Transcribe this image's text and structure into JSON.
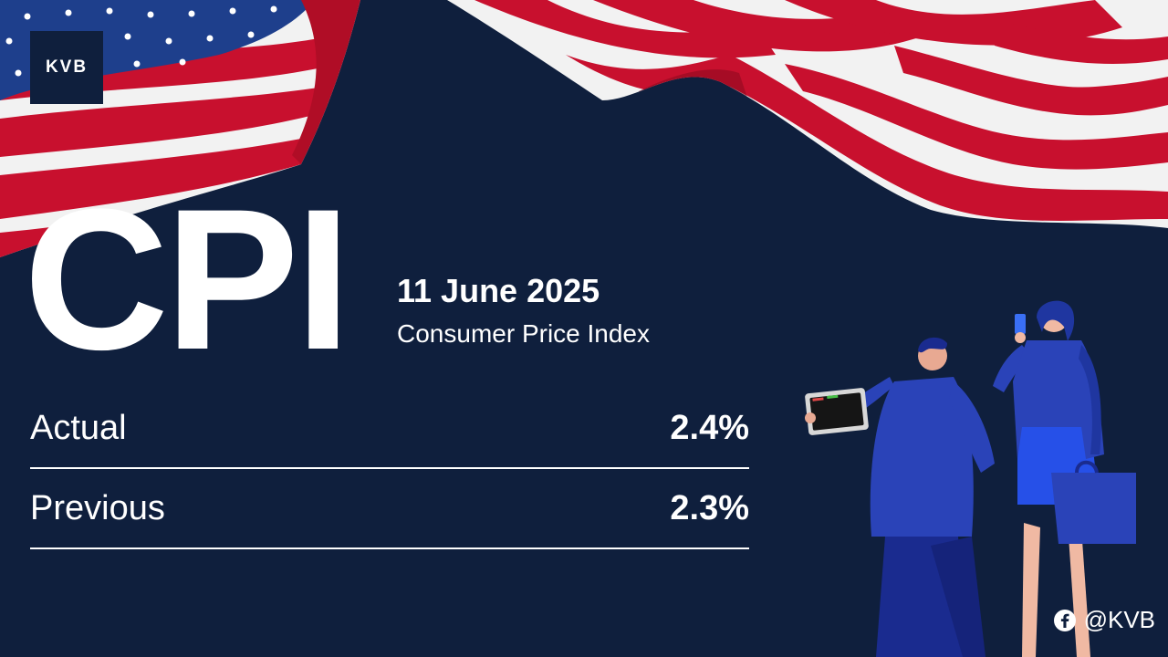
{
  "brand": {
    "logo_text": "KVB",
    "social_handle": "@KVB",
    "social_icon": "facebook-icon"
  },
  "headline": {
    "title": "CPI",
    "date": "11 June 2025",
    "subtitle": "Consumer Price Index"
  },
  "stats": [
    {
      "label": "Actual",
      "value": "2.4%"
    },
    {
      "label": "Previous",
      "value": "2.3%"
    }
  ],
  "colors": {
    "background": "#0f1f3d",
    "text": "#ffffff",
    "flag_red": "#c8102e",
    "flag_blue": "#1e3f8c",
    "figure_blue": "#2a43b8"
  },
  "decorations": {
    "flag": "us-flag",
    "illustration": "business-people-with-tablet-and-phone"
  }
}
